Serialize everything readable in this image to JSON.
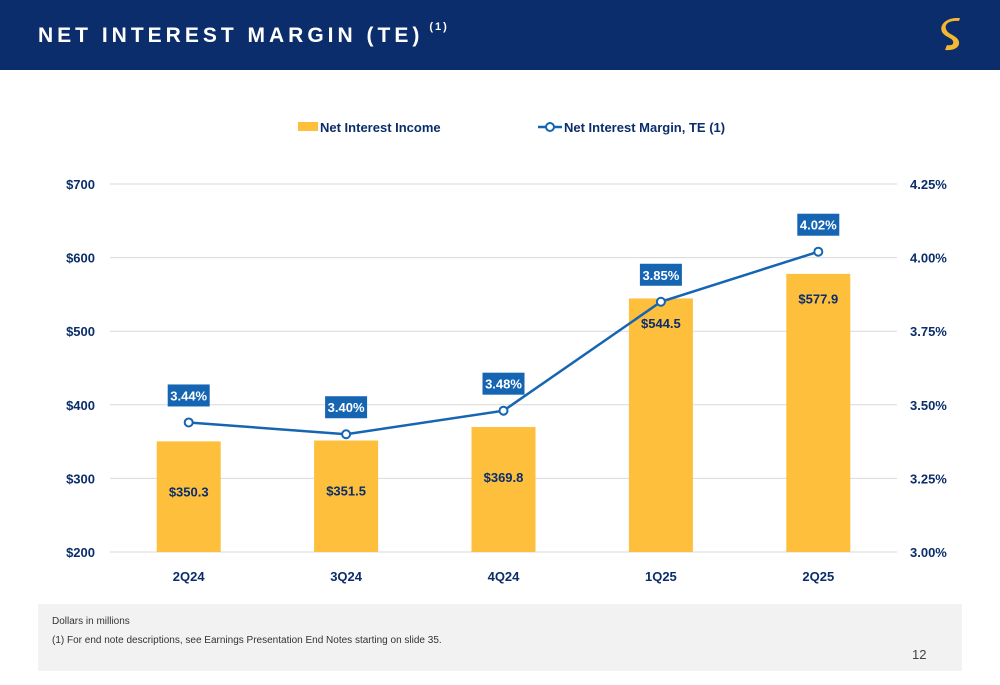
{
  "header": {
    "title": "NET INTEREST MARGIN (TE)",
    "title_superscript": "(1)",
    "background": "#0b2d6b",
    "logo_color": "#f5b731"
  },
  "chart_data": {
    "type": "bar",
    "categories": [
      "2Q24",
      "3Q24",
      "4Q24",
      "1Q25",
      "2Q25"
    ],
    "series": [
      {
        "name": "Net Interest Income",
        "type": "bar",
        "axis": "left",
        "color": "#fdbf3c",
        "values": [
          350.3,
          351.5,
          369.8,
          544.5,
          577.9
        ],
        "labels": [
          "$350.3",
          "$351.5",
          "$369.8",
          "$544.5",
          "$577.9"
        ]
      },
      {
        "name": "Net Interest Margin, TE (1)",
        "type": "line",
        "axis": "right",
        "color": "#1565b3",
        "values": [
          3.44,
          3.4,
          3.48,
          3.85,
          4.02
        ],
        "labels": [
          "3.44%",
          "3.40%",
          "3.48%",
          "3.85%",
          "4.02%"
        ]
      }
    ],
    "y_left": {
      "min": 200,
      "max": 700,
      "ticks": [
        200,
        300,
        400,
        500,
        600,
        700
      ],
      "tick_labels": [
        "$200",
        "$300",
        "$400",
        "$500",
        "$600",
        "$700"
      ]
    },
    "y_right": {
      "min": 3.0,
      "max": 4.25,
      "ticks": [
        3.0,
        3.25,
        3.5,
        3.75,
        4.0,
        4.25
      ],
      "tick_labels": [
        "3.00%",
        "3.25%",
        "3.50%",
        "3.75%",
        "4.00%",
        "4.25%"
      ]
    },
    "grid": true,
    "legend_position": "top-center",
    "text_color": "#0b2d6b",
    "grid_color": "#d9d9d9"
  },
  "footer": {
    "note1": "Dollars in millions",
    "note2": "(1)  For end note descriptions, see Earnings Presentation End Notes starting on slide 35."
  },
  "page_number": "12"
}
